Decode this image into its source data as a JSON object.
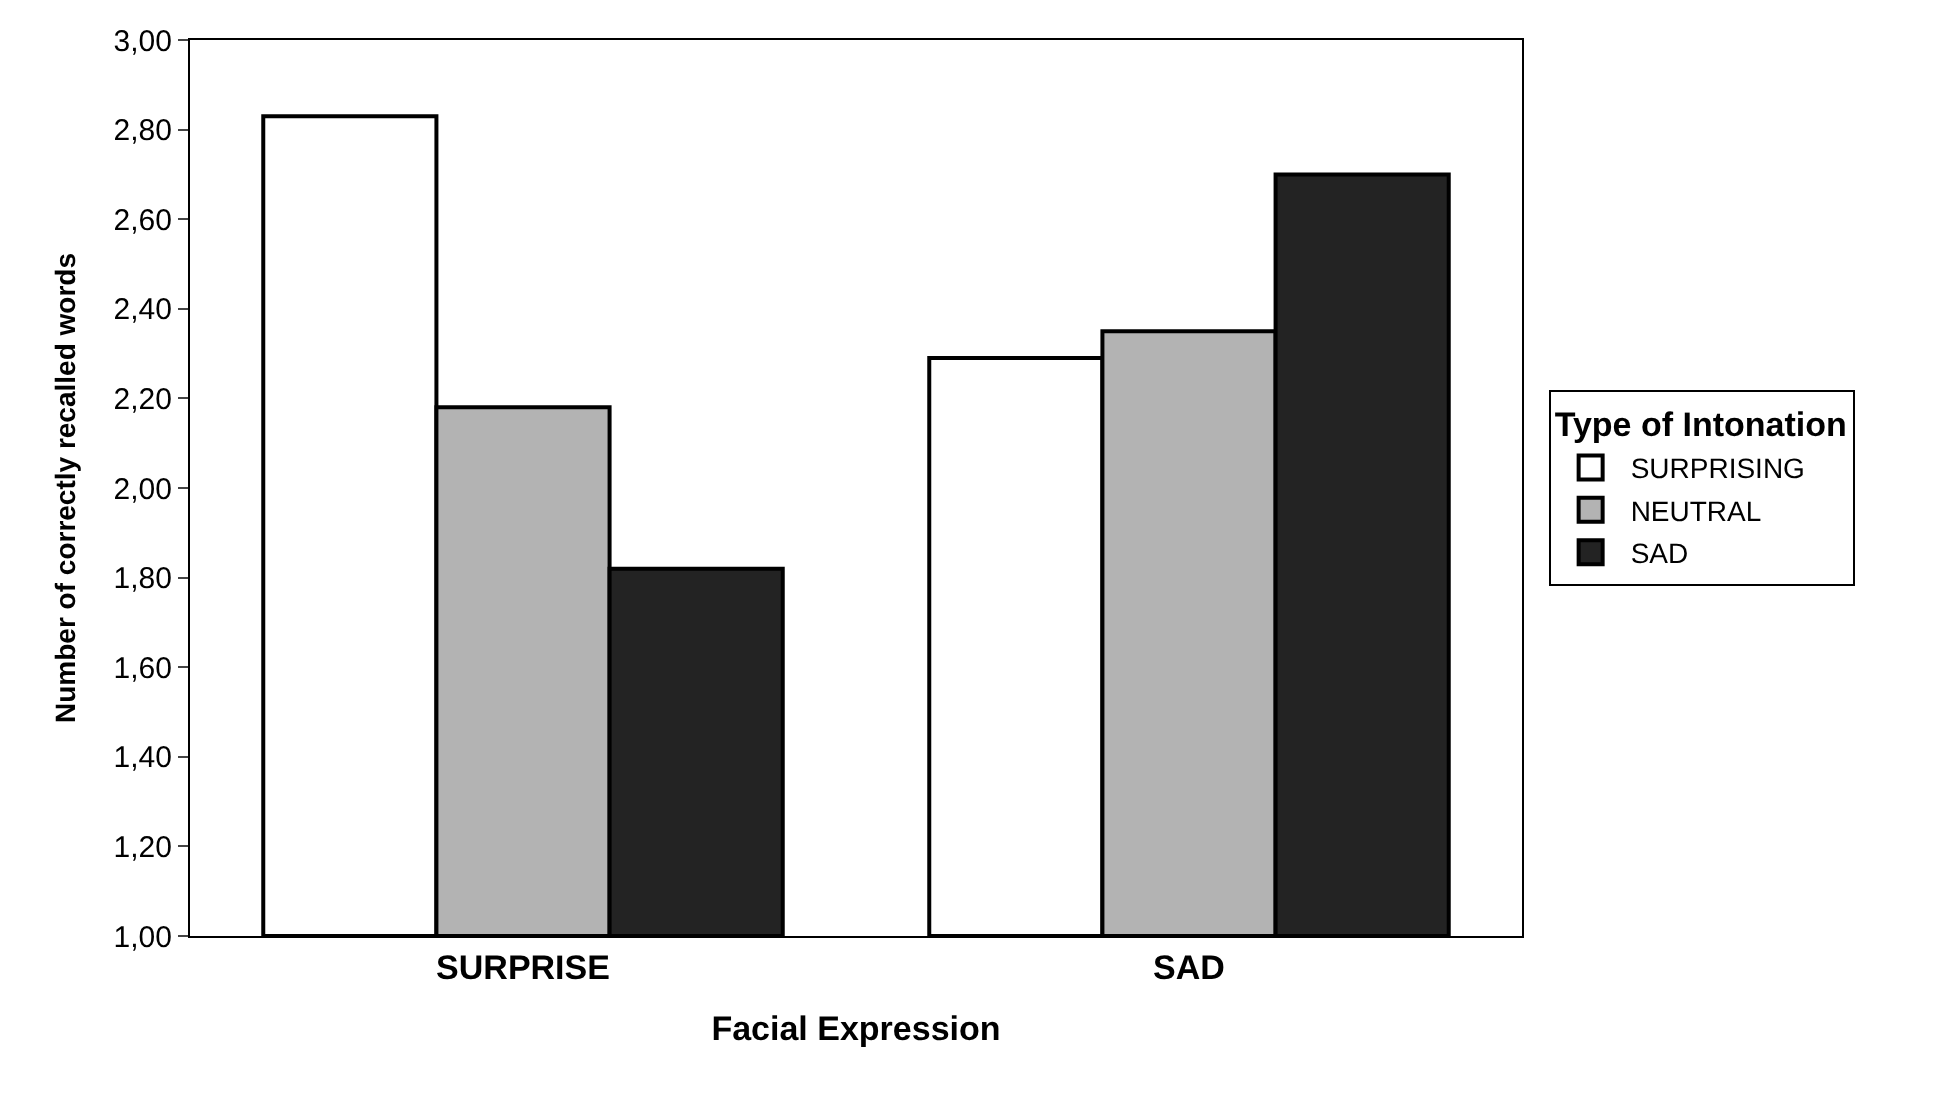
{
  "chart_data": {
    "type": "bar",
    "xlabel": "Facial Expression",
    "ylabel": "Number of correctly recalled words",
    "legend_title": "Type of Intonation",
    "categories": [
      "SURPRISE",
      "SAD"
    ],
    "series": [
      {
        "name": "SURPRISING",
        "color": "#ffffff",
        "values": [
          2.83,
          2.29
        ]
      },
      {
        "name": "NEUTRAL",
        "color": "#b3b3b3",
        "values": [
          2.18,
          2.35
        ]
      },
      {
        "name": "SAD",
        "color": "#232323",
        "values": [
          1.82,
          2.7
        ]
      }
    ],
    "ylim": [
      1,
      3
    ],
    "yticks": [
      {
        "value": 1,
        "label": "1,00"
      },
      {
        "value": 1.2,
        "label": "1,20"
      },
      {
        "value": 1.4,
        "label": "1,40"
      },
      {
        "value": 1.6,
        "label": "1,60"
      },
      {
        "value": 1.8,
        "label": "1,80"
      },
      {
        "value": 2,
        "label": "2,00"
      },
      {
        "value": 2.2,
        "label": "2,20"
      },
      {
        "value": 2.4,
        "label": "2,40"
      },
      {
        "value": 2.6,
        "label": "2,60"
      },
      {
        "value": 2.8,
        "label": "2,80"
      },
      {
        "value": 3,
        "label": "3,00"
      }
    ],
    "grid": false,
    "legend": "right"
  }
}
